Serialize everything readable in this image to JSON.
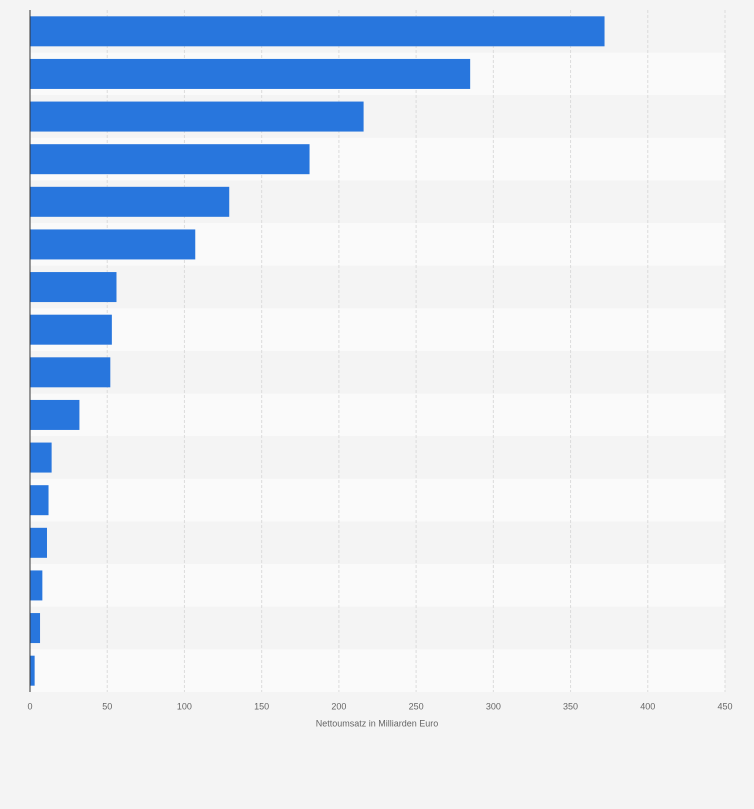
{
  "chart_data": {
    "type": "bar",
    "orientation": "horizontal",
    "x_label": "Nettoumsatz in Milliarden Euro",
    "categories": [
      null,
      null,
      null,
      null,
      null,
      null,
      null,
      null,
      null,
      null,
      null,
      null,
      null,
      null,
      null,
      null
    ],
    "values": [
      372,
      285,
      216,
      181,
      129,
      107,
      56,
      53,
      52,
      32,
      14,
      12,
      11,
      8,
      6.5,
      3
    ],
    "color": "#2876dd",
    "xlim": [
      0,
      450
    ],
    "xticks": [
      0,
      50,
      100,
      150,
      200,
      250,
      300,
      350,
      400,
      450
    ],
    "grid": true
  }
}
